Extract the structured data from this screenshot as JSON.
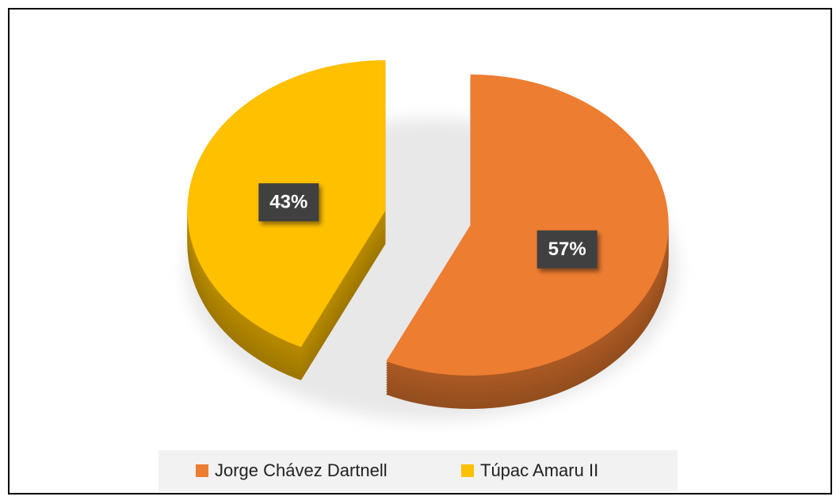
{
  "chart_data": {
    "type": "pie3d",
    "categories": [
      "Jorge Chávez Dartnell",
      "Túpac Amaru II"
    ],
    "values": [
      57,
      43
    ],
    "value_labels": [
      "57%",
      "43%"
    ],
    "colors": [
      "#ed7d31",
      "#ffc000"
    ],
    "legend": "bottom"
  }
}
